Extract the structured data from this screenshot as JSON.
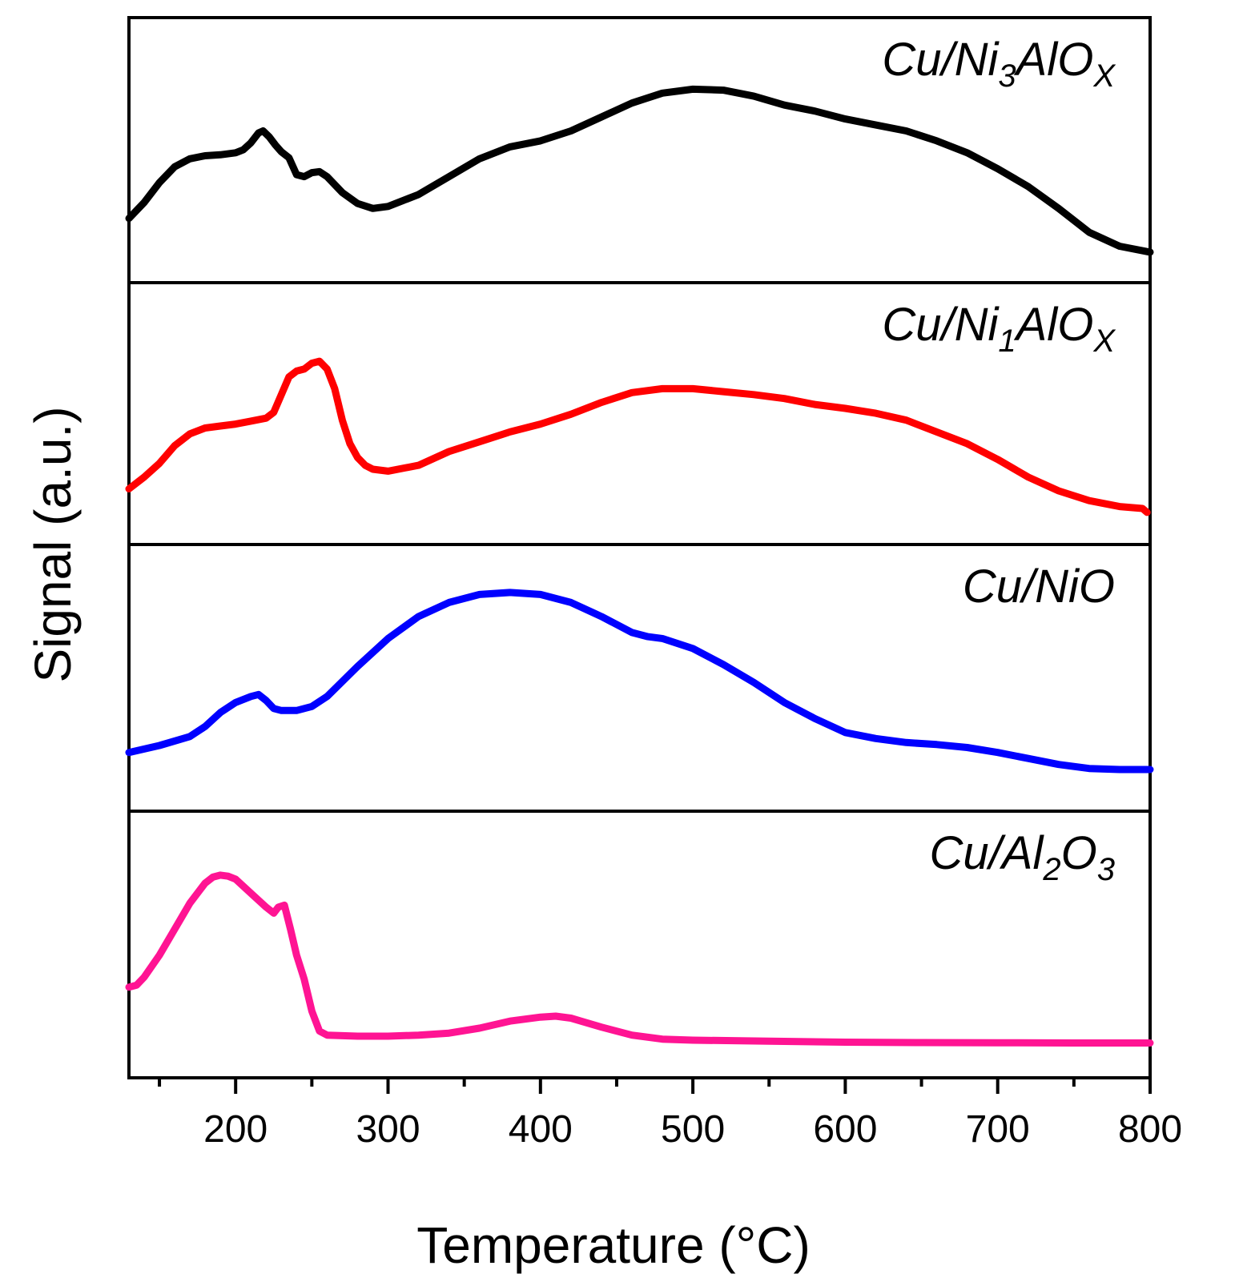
{
  "chart_data": {
    "type": "line",
    "layout": "stacked-panels",
    "xlabel": "Temperature (°C)",
    "ylabel": "Signal (a.u.)",
    "xlim": [
      130,
      800
    ],
    "x_ticks": [
      200,
      300,
      400,
      500,
      600,
      700,
      800
    ],
    "x_minor_ticks": [
      150,
      250,
      350,
      450,
      550,
      650,
      750
    ],
    "y_ticks_visible": false,
    "series": [
      {
        "name": "Cu/Ni3AlOx",
        "label_main": "Cu/Ni",
        "label_sub": "3",
        "label_main2": "AlO",
        "label_sub2": "X",
        "color": "#000000",
        "ylim": [
          0,
          1
        ],
        "x": [
          130,
          140,
          150,
          160,
          170,
          180,
          190,
          200,
          205,
          210,
          215,
          218,
          222,
          226,
          230,
          235,
          240,
          245,
          250,
          255,
          260,
          270,
          280,
          290,
          300,
          320,
          340,
          360,
          380,
          400,
          420,
          440,
          460,
          480,
          500,
          520,
          540,
          560,
          580,
          600,
          620,
          640,
          660,
          680,
          700,
          720,
          740,
          760,
          780,
          800
        ],
        "y": [
          0.23,
          0.31,
          0.41,
          0.49,
          0.53,
          0.545,
          0.55,
          0.56,
          0.575,
          0.61,
          0.66,
          0.67,
          0.64,
          0.6,
          0.565,
          0.535,
          0.45,
          0.44,
          0.46,
          0.465,
          0.44,
          0.36,
          0.305,
          0.28,
          0.29,
          0.35,
          0.44,
          0.53,
          0.59,
          0.62,
          0.67,
          0.74,
          0.81,
          0.86,
          0.88,
          0.875,
          0.845,
          0.8,
          0.77,
          0.73,
          0.7,
          0.67,
          0.62,
          0.56,
          0.48,
          0.39,
          0.28,
          0.16,
          0.09,
          0.06
        ]
      },
      {
        "name": "Cu/Ni1AlOx",
        "label_main": "Cu/Ni",
        "label_sub": "1",
        "label_main2": "AlO",
        "label_sub2": "X",
        "color": "#ff0000",
        "ylim": [
          0,
          1
        ],
        "x": [
          130,
          140,
          150,
          160,
          170,
          180,
          190,
          200,
          210,
          220,
          225,
          230,
          235,
          240,
          245,
          250,
          255,
          260,
          265,
          270,
          275,
          280,
          285,
          290,
          300,
          320,
          340,
          360,
          380,
          400,
          420,
          440,
          460,
          480,
          500,
          520,
          540,
          560,
          580,
          600,
          620,
          640,
          660,
          680,
          700,
          720,
          740,
          760,
          780,
          795,
          798
        ],
        "y": [
          0.19,
          0.25,
          0.32,
          0.41,
          0.47,
          0.5,
          0.51,
          0.52,
          0.535,
          0.55,
          0.58,
          0.67,
          0.76,
          0.79,
          0.8,
          0.83,
          0.84,
          0.8,
          0.7,
          0.54,
          0.42,
          0.35,
          0.31,
          0.29,
          0.28,
          0.31,
          0.38,
          0.43,
          0.48,
          0.52,
          0.57,
          0.63,
          0.68,
          0.7,
          0.7,
          0.685,
          0.67,
          0.65,
          0.62,
          0.6,
          0.575,
          0.54,
          0.48,
          0.42,
          0.34,
          0.25,
          0.18,
          0.13,
          0.1,
          0.09,
          0.07
        ]
      },
      {
        "name": "Cu/NiO",
        "label_main": "Cu/NiO",
        "color": "#0000ff",
        "ylim": [
          0,
          1
        ],
        "x": [
          130,
          150,
          170,
          180,
          190,
          200,
          210,
          215,
          220,
          225,
          230,
          240,
          250,
          260,
          280,
          300,
          320,
          340,
          360,
          380,
          400,
          420,
          440,
          460,
          470,
          480,
          500,
          520,
          540,
          560,
          580,
          600,
          620,
          640,
          660,
          680,
          700,
          720,
          740,
          760,
          780,
          800
        ],
        "y": [
          0.2,
          0.235,
          0.28,
          0.33,
          0.4,
          0.45,
          0.48,
          0.49,
          0.46,
          0.42,
          0.41,
          0.41,
          0.43,
          0.48,
          0.63,
          0.77,
          0.88,
          0.95,
          0.99,
          1.0,
          0.99,
          0.95,
          0.88,
          0.8,
          0.78,
          0.77,
          0.72,
          0.64,
          0.55,
          0.45,
          0.37,
          0.3,
          0.27,
          0.25,
          0.24,
          0.225,
          0.2,
          0.17,
          0.14,
          0.12,
          0.115,
          0.115
        ]
      },
      {
        "name": "Cu/Al2O3",
        "label_main": "Cu/Al",
        "label_sub": "2",
        "label_main2": "O",
        "label_sub2": "3",
        "color": "#ff1493",
        "ylim": [
          0,
          1
        ],
        "x": [
          130,
          135,
          140,
          150,
          160,
          170,
          180,
          185,
          190,
          195,
          200,
          210,
          220,
          225,
          228,
          232,
          236,
          240,
          245,
          250,
          255,
          260,
          280,
          300,
          320,
          340,
          360,
          380,
          400,
          410,
          420,
          440,
          460,
          480,
          500,
          550,
          600,
          650,
          700,
          750,
          800
        ],
        "y": [
          0.36,
          0.37,
          0.41,
          0.52,
          0.65,
          0.78,
          0.88,
          0.91,
          0.92,
          0.915,
          0.9,
          0.83,
          0.76,
          0.73,
          0.76,
          0.77,
          0.65,
          0.52,
          0.4,
          0.24,
          0.14,
          0.12,
          0.115,
          0.115,
          0.12,
          0.13,
          0.155,
          0.19,
          0.21,
          0.215,
          0.205,
          0.16,
          0.12,
          0.1,
          0.095,
          0.09,
          0.085,
          0.083,
          0.082,
          0.081,
          0.081
        ]
      }
    ]
  }
}
